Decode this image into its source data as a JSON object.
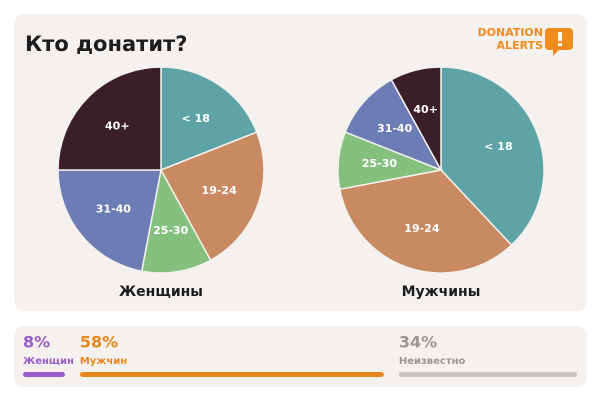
{
  "title": "Кто донатит?",
  "logo": [
    "DONATION",
    "ALERTS"
  ],
  "chart_data": [
    {
      "type": "pie",
      "title": "Женщины",
      "categories": [
        "< 18",
        "19-24",
        "25-30",
        "31-40",
        "40+"
      ],
      "values": [
        19,
        23,
        11,
        22,
        25
      ],
      "colors": [
        "#5ea4a7",
        "#c98a62",
        "#86c07f",
        "#6c7cb5",
        "#3c1e2b"
      ]
    },
    {
      "type": "pie",
      "title": "Мужчины",
      "categories": [
        "< 18",
        "19-24",
        "25-30",
        "31-40",
        "40+"
      ],
      "values": [
        38,
        34,
        9,
        11,
        8
      ],
      "colors": [
        "#5ea4a7",
        "#c98a62",
        "#86c07f",
        "#6c7cb5",
        "#3c1e2b"
      ]
    }
  ],
  "summary": {
    "names": [
      "Женщин",
      "Мужчин",
      "Неизвестно"
    ],
    "values": [
      8,
      58,
      34
    ],
    "value_labels": [
      "8%",
      "58%",
      "34%"
    ],
    "colors": [
      "#9b5bc9",
      "#e8871e",
      "#c9c5c1"
    ],
    "text_colors": [
      "#9b5bc9",
      "#e8871e",
      "#9a9692"
    ]
  }
}
